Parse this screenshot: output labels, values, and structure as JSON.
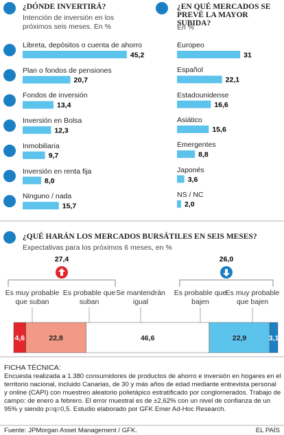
{
  "chart_data": [
    {
      "type": "bar",
      "title": "¿DÓNDE INVERTIRÁ?",
      "subtitle": "Intención de inversión en los próximos seis meses. En %",
      "categories": [
        "Libreta, depósitos o cuenta de ahorro",
        "Plan o fondos de pensiones",
        "Fondos de inversión",
        "Inversión en Bolsa",
        "Inmobiliaria",
        "Inversión en renta fija",
        "Ninguno / nada"
      ],
      "values": [
        45.2,
        20.7,
        13.4,
        12.3,
        9.7,
        8.0,
        15.7
      ],
      "value_labels": [
        "45,2",
        "20,7",
        "13,4",
        "12,3",
        "9,7",
        "8,0",
        "15,7"
      ],
      "color": "#5cc3ec",
      "xlim": [
        0,
        50
      ]
    },
    {
      "type": "bar",
      "title": "¿EN QUÉ MERCADOS SE PREVÉ LA MAYOR SUBIDA?",
      "subtitle": "En %",
      "categories": [
        "Europeo",
        "Español",
        "Estadounidense",
        "Asiático",
        "Emergentes",
        "Japonés",
        "NS / NC"
      ],
      "values": [
        31,
        22.1,
        16.6,
        15.6,
        8.8,
        3.6,
        2.0
      ],
      "value_labels": [
        "31",
        "22,1",
        "16,6",
        "15,6",
        "8,8",
        "3,6",
        "2,0"
      ],
      "color": "#5cc3ec",
      "xlim": [
        0,
        35
      ]
    },
    {
      "type": "stacked_bar",
      "title": "¿QUÉ HARÁN LOS MERCADOS BURSÁTILES EN SEIS MESES?",
      "subtitle": "Expectativas para los próximos 6 meses, en %",
      "series": [
        {
          "name": "Es muy probable que suban",
          "color": "#e3262b",
          "values": [
            4.6
          ],
          "value_labels": [
            "4,6"
          ]
        },
        {
          "name": "Es probable que suban",
          "color": "#f29a85",
          "values": [
            22.8
          ],
          "value_labels": [
            "22,8"
          ]
        },
        {
          "name": "Se mantendrán igual",
          "color": "#ffffff",
          "values": [
            46.6
          ],
          "value_labels": [
            "46,6"
          ]
        },
        {
          "name": "Es probable que bajen",
          "color": "#5cc3ec",
          "values": [
            22.9
          ],
          "value_labels": [
            "22,9"
          ]
        },
        {
          "name": "Es muy probable que bajen",
          "color": "#1b7fc4",
          "values": [
            3.1
          ],
          "value_labels": [
            "3,1"
          ]
        }
      ],
      "totals": [
        {
          "value": 27.4,
          "label": "27,4"
        },
        {
          "value": 26.0,
          "label": "26,0"
        }
      ],
      "xlim": [
        0,
        100
      ]
    }
  ],
  "footer": {
    "heading": "FICHA TÉCNICA:",
    "text": "Encuesta realizada a 1.380 consumidores de productos de ahorro e inversión en hogares en el territorio nacional, incluido Canarias, de 30 y más años de edad mediante entrevista personal y online (CAPI) con muestreo aleatorio polietápico estratificado por conglomerados. Trabajo de campo: de enero a febrero. El error muestral es de ±2,62% con un nivel de confianza de un 95% y siendo p=q=0,5. Estudio elaborado por GFK Emer Ad-Hoc Research.",
    "source": "Fuente: JPMorgan Asset Management / GFK.",
    "brand": "EL PAÍS"
  }
}
